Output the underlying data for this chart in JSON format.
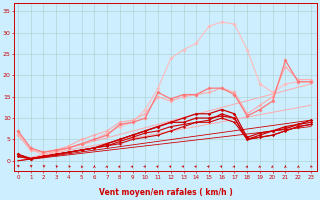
{
  "xlabel": "Vent moyen/en rafales ( km/h )",
  "background_color": "#cceeff",
  "grid_color": "#aacccc",
  "x_ticks": [
    0,
    1,
    2,
    3,
    4,
    5,
    6,
    7,
    8,
    9,
    10,
    11,
    12,
    13,
    14,
    15,
    16,
    17,
    18,
    19,
    20,
    21,
    22,
    23
  ],
  "y_ticks": [
    0,
    5,
    10,
    15,
    20,
    25,
    30,
    35
  ],
  "ylim": [
    -2.5,
    37
  ],
  "xlim": [
    -0.3,
    23.5
  ],
  "series": [
    {
      "x": [
        0,
        1,
        2,
        3,
        4,
        5,
        6,
        7,
        8,
        9,
        10,
        11,
        12,
        13,
        14,
        15,
        16,
        17,
        18,
        19,
        20,
        21,
        22,
        23
      ],
      "y": [
        6.5,
        2.5,
        1.5,
        2,
        3,
        4,
        5,
        6.5,
        8,
        9,
        12,
        17,
        24,
        26,
        27.5,
        31.5,
        32.5,
        32,
        26,
        18,
        16,
        18,
        18.5,
        18.5
      ],
      "color": "#ffbbbb",
      "lw": 0.8,
      "ms": 2.0
    },
    {
      "x": [
        0,
        1,
        2,
        3,
        4,
        5,
        6,
        7,
        8,
        9,
        10,
        11,
        12,
        13,
        14,
        15,
        16,
        17,
        18,
        19,
        20,
        21,
        22,
        23
      ],
      "y": [
        6,
        2.5,
        2,
        2.5,
        3.5,
        5,
        6,
        7,
        9,
        9.5,
        11,
        15,
        14,
        15,
        15.5,
        16,
        17,
        16,
        11,
        13,
        15,
        22,
        19,
        19
      ],
      "color": "#ffaaaa",
      "lw": 0.8,
      "ms": 2.0
    },
    {
      "x": [
        0,
        1,
        2,
        3,
        4,
        5,
        6,
        7,
        8,
        9,
        10,
        11,
        12,
        13,
        14,
        15,
        16,
        17,
        18,
        19,
        20,
        21,
        22,
        23
      ],
      "y": [
        7,
        3,
        2,
        2.5,
        3,
        4,
        5,
        6,
        8.5,
        9,
        10,
        16,
        14.5,
        15.5,
        15.5,
        17,
        17,
        15.5,
        10.5,
        12,
        14,
        23.5,
        18.5,
        18.5
      ],
      "color": "#ff7777",
      "lw": 0.9,
      "ms": 2.0
    },
    {
      "x": [
        0,
        4,
        23
      ],
      "y": [
        0,
        3,
        18
      ],
      "color": "#ffaaaa",
      "lw": 0.7,
      "ms": 0
    },
    {
      "x": [
        0,
        4,
        23
      ],
      "y": [
        0,
        2.5,
        13
      ],
      "color": "#ffaaaa",
      "lw": 0.7,
      "ms": 0
    },
    {
      "x": [
        0,
        1,
        2,
        3,
        4,
        5,
        6,
        7,
        8,
        9,
        10,
        11,
        12,
        13,
        14,
        15,
        16,
        17,
        18,
        19,
        20,
        21,
        22,
        23
      ],
      "y": [
        1.5,
        0.5,
        1,
        1.5,
        2,
        2.5,
        3,
        4,
        5,
        6,
        7,
        8,
        9,
        9,
        10,
        10,
        10.5,
        10,
        5,
        6,
        7,
        8,
        8.5,
        9.5
      ],
      "color": "#cc0000",
      "lw": 0.9,
      "ms": 1.8
    },
    {
      "x": [
        0,
        1,
        2,
        3,
        4,
        5,
        6,
        7,
        8,
        9,
        10,
        11,
        12,
        13,
        14,
        15,
        16,
        17,
        18,
        19,
        20,
        21,
        22,
        23
      ],
      "y": [
        1.5,
        0.5,
        1,
        1.5,
        2,
        2.5,
        3,
        4,
        5,
        6,
        7,
        8,
        9,
        10,
        11,
        11,
        12,
        11,
        5.5,
        6.5,
        7,
        7.5,
        8.5,
        9
      ],
      "color": "#cc0000",
      "lw": 0.9,
      "ms": 1.8
    },
    {
      "x": [
        0,
        1,
        2,
        3,
        4,
        5,
        6,
        7,
        8,
        9,
        10,
        11,
        12,
        13,
        14,
        15,
        16,
        17,
        18,
        19,
        20,
        21,
        22,
        23
      ],
      "y": [
        1,
        0.5,
        1,
        1.5,
        2,
        2.5,
        3,
        3.5,
        4.5,
        5.5,
        6.5,
        7,
        8,
        8.5,
        9,
        9.5,
        11,
        10,
        5,
        5.5,
        6,
        7,
        8,
        8.5
      ],
      "color": "#cc0000",
      "lw": 0.8,
      "ms": 1.5
    },
    {
      "x": [
        0,
        1,
        2,
        3,
        4,
        5,
        6,
        7,
        8,
        9,
        10,
        11,
        12,
        13,
        14,
        15,
        16,
        17,
        18,
        19,
        20,
        21,
        22,
        23
      ],
      "y": [
        1,
        0.5,
        1,
        1.5,
        2,
        2.5,
        3,
        3.5,
        4,
        5,
        5.5,
        6,
        7,
        8,
        9,
        9,
        10,
        9,
        5,
        5.5,
        6,
        7,
        8,
        8.5
      ],
      "color": "#cc0000",
      "lw": 0.8,
      "ms": 1.5
    },
    {
      "x": [
        0,
        23
      ],
      "y": [
        0,
        9.5
      ],
      "color": "#cc0000",
      "lw": 0.6,
      "ms": 0
    },
    {
      "x": [
        0,
        23
      ],
      "y": [
        0,
        8
      ],
      "color": "#cc0000",
      "lw": 0.6,
      "ms": 0
    }
  ],
  "wind_angles": [
    220,
    215,
    210,
    200,
    195,
    185,
    180,
    175,
    170,
    170,
    165,
    165,
    165,
    165,
    165,
    165,
    165,
    170,
    175,
    175,
    175,
    180,
    185,
    190
  ]
}
